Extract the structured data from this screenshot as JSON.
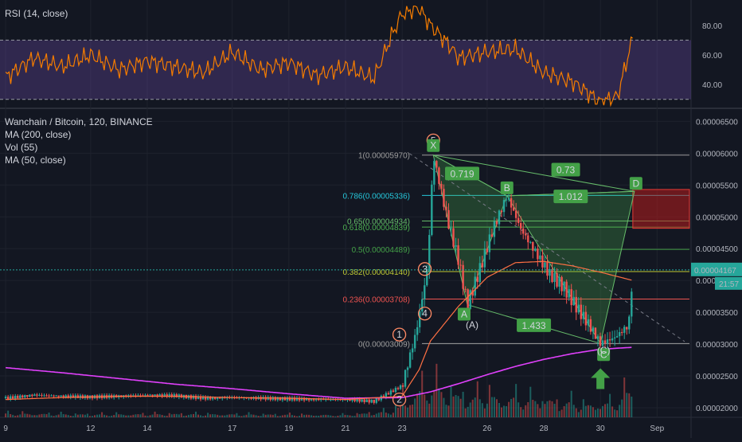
{
  "rsi_panel": {
    "label": "RSI (14, close)",
    "ticks": [
      "80.00",
      "60.00",
      "40.00"
    ],
    "tick_values": [
      80,
      60,
      40
    ],
    "upper_band": 70,
    "lower_band": 30,
    "range": [
      25,
      95
    ]
  },
  "main_panel": {
    "title": "Wanchain / Bitcoin, 120, BINANCE",
    "indicators": [
      "MA (200, close)",
      "Vol (55)",
      "MA (50, close)"
    ],
    "price_ticks": [
      "0.00006500",
      "0.00006000",
      "0.00005500",
      "0.00005000",
      "0.00004500",
      "0.00004000",
      "0.00003500",
      "0.00003000",
      "0.00002500",
      "0.00002000"
    ],
    "price_tick_values": [
      6.5e-05,
      6e-05,
      5.5e-05,
      5e-05,
      4.5e-05,
      4e-05,
      3.5e-05,
      3e-05,
      2.5e-05,
      2e-05
    ],
    "price_range": [
      1.85e-05,
      6.68e-05
    ],
    "last_price": "0.00004167",
    "last_price_value": 4.167e-05,
    "countdown": "21:57",
    "x_ticks": [
      "9",
      "12",
      "14",
      "17",
      "19",
      "21",
      "23",
      "26",
      "28",
      "30",
      "Sep"
    ],
    "colors": {
      "background": "#131722",
      "up": "#26a69a",
      "down": "#ef5350",
      "rsi": "#f57c00",
      "ma200": "#e040fb",
      "ma50": "#ff7043",
      "pattern_fill": "#4caf50",
      "target_zone": "#b71c1c"
    }
  },
  "fibonacci": [
    {
      "label": "1(0.00005970)",
      "value": 5.97e-05,
      "color": "#9e9e9e"
    },
    {
      "label": "0.786(0.00005336)",
      "value": 5.336e-05,
      "color": "#26c6da"
    },
    {
      "label": "0.65(0.00004934)",
      "value": 4.934e-05,
      "color": "#66bb6a"
    },
    {
      "label": "0.618(0.00004839)",
      "value": 4.839e-05,
      "color": "#4caf50"
    },
    {
      "label": "0.5(0.00004489)",
      "value": 4.489e-05,
      "color": "#43a047"
    },
    {
      "label": "0.382(0.00004140)",
      "value": 4.14e-05,
      "color": "#c0ca33"
    },
    {
      "label": "0.236(0.00003708)",
      "value": 3.708e-05,
      "color": "#ef5350"
    },
    {
      "label": "0(0.00003009)",
      "value": 3.009e-05,
      "color": "#9e9e9e"
    }
  ],
  "pattern": {
    "points": [
      {
        "name": "X",
        "x": 24.1,
        "y": 5.97e-05
      },
      {
        "name": "A",
        "x": 25.3,
        "y": 3.62e-05
      },
      {
        "name": "B",
        "x": 26.7,
        "y": 5.33e-05
      },
      {
        "name": "C",
        "x": 30.0,
        "y": 3.01e-05
      },
      {
        "name": "D",
        "x": 31.2,
        "y": 5.4e-05
      }
    ],
    "ratios": [
      "0.719",
      "0.73",
      "1.012",
      "1.433"
    ],
    "target_zone": [
      4.82e-05,
      5.43e-05
    ]
  },
  "waves": [
    "1",
    "2",
    "3",
    "4",
    "5"
  ],
  "wave_A_label": "(A)",
  "wave_C_label": "(C)",
  "chart_data": {
    "type": "line",
    "title": "Wanchain / Bitcoin, 120, BINANCE",
    "x_unit": "day of month (Aug), 2h candles",
    "x_range": [
      8.8,
      33.2
    ],
    "series": [
      {
        "name": "close",
        "x": [
          9,
          10,
          11,
          12,
          13,
          14,
          15,
          16,
          17,
          18,
          19,
          20,
          21,
          22,
          23,
          23.5,
          23.9,
          24.1,
          24.6,
          25.0,
          25.3,
          25.7,
          26.2,
          26.7,
          27.2,
          27.7,
          28.2,
          28.7,
          29.2,
          29.6,
          30.0,
          30.5,
          31.0,
          31.15
        ],
        "values": [
          2.15e-05,
          2.2e-05,
          2.18e-05,
          2.17e-05,
          2.18e-05,
          2.2e-05,
          2.19e-05,
          2.15e-05,
          2.16e-05,
          2.15e-05,
          2.14e-05,
          2.13e-05,
          2.13e-05,
          2.1e-05,
          2.35e-05,
          3.2e-05,
          4.2e-05,
          5.97e-05,
          4.95e-05,
          4.3e-05,
          3.62e-05,
          4.12e-05,
          4.8e-05,
          5.33e-05,
          4.8e-05,
          4.45e-05,
          4.1e-05,
          3.9e-05,
          3.55e-05,
          3.3e-05,
          3.01e-05,
          3.1e-05,
          3.3e-05,
          4.167e-05
        ]
      },
      {
        "name": "MA (200, close)",
        "x": [
          9,
          11,
          13,
          15,
          17,
          19,
          21,
          23,
          24,
          25,
          26,
          27,
          28,
          29,
          30,
          31.15
        ],
        "values": [
          2.63e-05,
          2.55e-05,
          2.46e-05,
          2.37e-05,
          2.3e-05,
          2.22e-05,
          2.15e-05,
          2.16e-05,
          2.25e-05,
          2.38e-05,
          2.52e-05,
          2.65e-05,
          2.76e-05,
          2.85e-05,
          2.92e-05,
          2.95e-05
        ]
      },
      {
        "name": "MA (50, close)",
        "x": [
          9,
          11,
          13,
          15,
          17,
          19,
          21,
          23,
          23.6,
          24,
          25,
          26,
          27,
          28,
          29,
          30,
          31.15
        ],
        "values": [
          2.13e-05,
          2.16e-05,
          2.18e-05,
          2.18e-05,
          2.16e-05,
          2.15e-05,
          2.13e-05,
          2.18e-05,
          2.6e-05,
          3.05e-05,
          3.6e-05,
          4.05e-05,
          4.28e-05,
          4.3e-05,
          4.23e-05,
          4.13e-05,
          4e-05
        ]
      },
      {
        "name": "RSI (14, close)",
        "x": [
          9,
          10,
          11,
          12,
          13,
          14,
          15,
          16,
          17,
          18,
          19,
          20,
          21,
          22,
          22.6,
          23.0,
          23.6,
          24.0,
          24.6,
          25,
          26,
          27,
          28,
          29,
          29.6,
          30.0,
          30.6,
          31.15
        ],
        "values": [
          45,
          58,
          52,
          60,
          50,
          56,
          52,
          48,
          62,
          50,
          55,
          46,
          52,
          44,
          72,
          88,
          92,
          80,
          68,
          58,
          62,
          64,
          48,
          42,
          34,
          28,
          32,
          72
        ]
      }
    ],
    "volume": {
      "name": "Vol (55)",
      "x": [
        9,
        12,
        15,
        18,
        21,
        22.5,
        23,
        23.5,
        24,
        24.5,
        25,
        25.5,
        26,
        26.5,
        27,
        27.5,
        28,
        28.5,
        29,
        29.5,
        30,
        30.5,
        31.1
      ],
      "values": [
        0.8,
        0.6,
        0.7,
        0.6,
        0.5,
        1.2,
        2.5,
        5,
        7,
        5.5,
        4.5,
        4,
        5,
        3.5,
        4.2,
        3.6,
        4,
        3,
        3.2,
        2.5,
        2.8,
        3,
        6
      ]
    }
  }
}
